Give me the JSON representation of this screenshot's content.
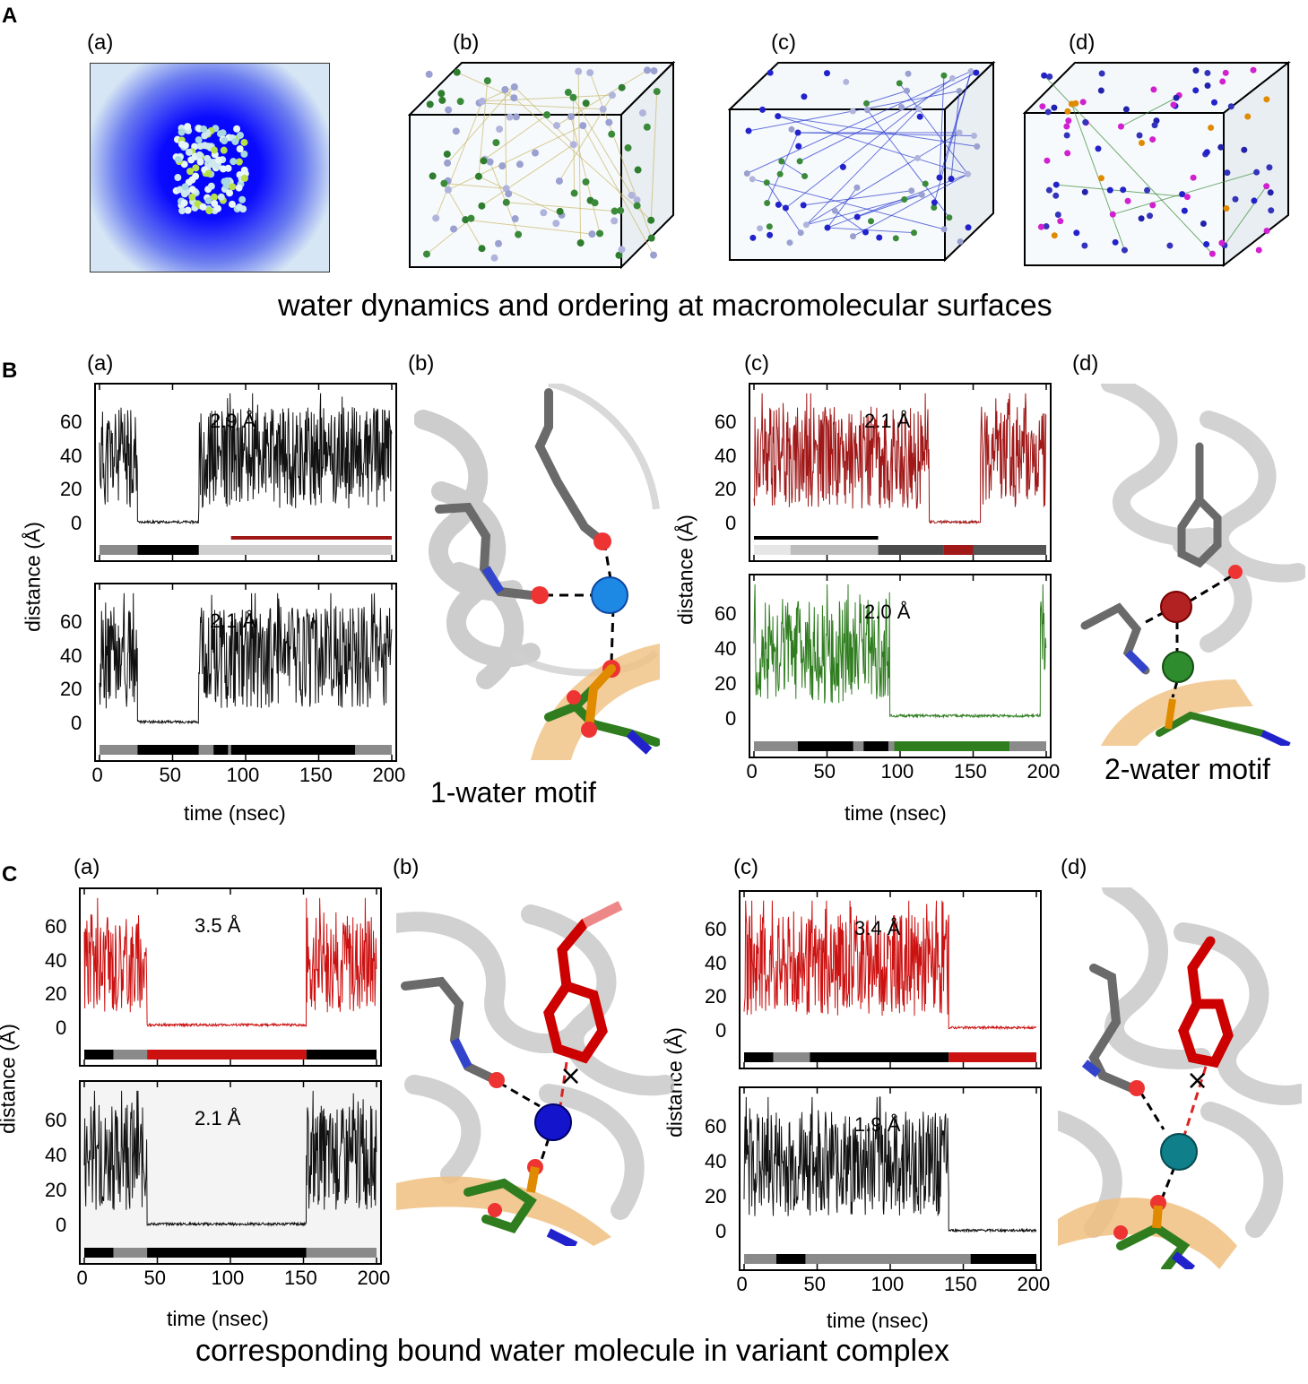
{
  "section_a": {
    "letter": "A",
    "panels": [
      "(a)",
      "(b)",
      "(c)",
      "(d)"
    ],
    "caption": "water dynamics and ordering at macromolecular surfaces"
  },
  "section_b": {
    "letter": "B",
    "panels": [
      "(a)",
      "(b)",
      "(c)",
      "(d)"
    ],
    "motif_1": "1-water motif",
    "motif_2": "2-water motif",
    "ylabel": "distance (Å)",
    "xlabel": "time (nsec)"
  },
  "section_c": {
    "letter": "C",
    "panels": [
      "(a)",
      "(b)",
      "(c)",
      "(d)"
    ],
    "caption": "corresponding bound water molecule in variant complex",
    "ylabel": "distance (Å)",
    "xlabel": "time (nsec)"
  },
  "colors": {
    "black_trace": "#111111",
    "darkred_trace": "#a01818",
    "green_trace": "#2f7d1f",
    "red_trace": "#cc1111",
    "bar_gray": "#8a8a8a",
    "bar_black": "#000000"
  },
  "chart_data": [
    {
      "id": "B-a-top",
      "type": "line",
      "distance_label": "2.9 Å",
      "xlim": [
        0,
        200
      ],
      "ylim": [
        -10,
        80
      ],
      "yticks": [
        "0",
        "20",
        "40",
        "60"
      ],
      "xticks": [],
      "xlabel": "",
      "ylabel": "distance (Å)",
      "color": "#111111",
      "segments": [
        [
          0,
          26,
          40
        ],
        [
          26,
          68,
          2
        ],
        [
          68,
          200,
          40
        ]
      ],
      "bar": [
        [
          0,
          26,
          "#8a8a8a"
        ],
        [
          26,
          68,
          "#000000"
        ],
        [
          68,
          200,
          "#cfcfcf"
        ]
      ],
      "highlight": [
        90,
        200,
        "#a01818"
      ]
    },
    {
      "id": "B-a-bottom",
      "type": "line",
      "distance_label": "2.1 Å",
      "xlim": [
        0,
        200
      ],
      "ylim": [
        -10,
        80
      ],
      "yticks": [
        "0",
        "20",
        "40",
        "60"
      ],
      "xticks": [
        "0",
        "50",
        "100",
        "150",
        "200"
      ],
      "xlabel": "time (nsec)",
      "ylabel": "",
      "color": "#111111",
      "segments": [
        [
          0,
          26,
          40
        ],
        [
          26,
          68,
          2
        ],
        [
          68,
          200,
          40
        ]
      ],
      "bar": [
        [
          0,
          26,
          "#8a8a8a"
        ],
        [
          26,
          68,
          "#000000"
        ],
        [
          68,
          78,
          "#8a8a8a"
        ],
        [
          78,
          88,
          "#000000"
        ],
        [
          88,
          90,
          "#8a8a8a"
        ],
        [
          90,
          175,
          "#000000"
        ],
        [
          175,
          200,
          "#8a8a8a"
        ]
      ]
    },
    {
      "id": "B-c-top",
      "type": "line",
      "distance_label": "2.1 Å",
      "xlim": [
        0,
        200
      ],
      "ylim": [
        -10,
        80
      ],
      "yticks": [
        "0",
        "20",
        "40",
        "60"
      ],
      "xticks": [],
      "xlabel": "",
      "ylabel": "distance (Å)",
      "color": "#a01818",
      "segments": [
        [
          0,
          120,
          40
        ],
        [
          120,
          155,
          2
        ],
        [
          155,
          200,
          40
        ]
      ],
      "bar": [
        [
          0,
          25,
          "#e6e6e6"
        ],
        [
          25,
          85,
          "#bdbdbd"
        ],
        [
          85,
          130,
          "#4a4a4a"
        ],
        [
          130,
          150,
          "#a01818"
        ],
        [
          150,
          200,
          "#555555"
        ]
      ],
      "highlight": [
        0,
        85,
        "#000000"
      ]
    },
    {
      "id": "B-c-bottom",
      "type": "line",
      "distance_label": "2.0 Å",
      "xlim": [
        0,
        200
      ],
      "ylim": [
        -10,
        80
      ],
      "yticks": [
        "0",
        "20",
        "40",
        "60"
      ],
      "xticks": [
        "0",
        "50",
        "100",
        "150",
        "200"
      ],
      "xlabel": "time (nsec)",
      "ylabel": "",
      "color": "#2f7d1f",
      "segments": [
        [
          0,
          93,
          40
        ],
        [
          93,
          196,
          3
        ],
        [
          196,
          200,
          40
        ]
      ],
      "bar": [
        [
          0,
          30,
          "#8a8a8a"
        ],
        [
          30,
          68,
          "#000000"
        ],
        [
          68,
          75,
          "#8a8a8a"
        ],
        [
          75,
          92,
          "#000000"
        ],
        [
          92,
          96,
          "#8a8a8a"
        ],
        [
          96,
          175,
          "#2f7d1f"
        ],
        [
          175,
          200,
          "#8a8a8a"
        ]
      ]
    },
    {
      "id": "C-a-top",
      "type": "line",
      "distance_label": "3.5 Å",
      "xlim": [
        0,
        200
      ],
      "ylim": [
        -10,
        80
      ],
      "yticks": [
        "0",
        "20",
        "40",
        "60"
      ],
      "xticks": [],
      "xlabel": "",
      "ylabel": "distance (Å)",
      "color": "#cc1111",
      "segments": [
        [
          0,
          43,
          40
        ],
        [
          43,
          152,
          3
        ],
        [
          152,
          200,
          40
        ]
      ],
      "bar": [
        [
          0,
          20,
          "#000000"
        ],
        [
          20,
          43,
          "#8a8a8a"
        ],
        [
          43,
          152,
          "#cc1111"
        ],
        [
          152,
          200,
          "#000000"
        ]
      ]
    },
    {
      "id": "C-a-bottom",
      "type": "line",
      "distance_label": "2.1 Å",
      "xlim": [
        0,
        200
      ],
      "ylim": [
        -10,
        80
      ],
      "yticks": [
        "0",
        "20",
        "40",
        "60"
      ],
      "xticks": [
        "0",
        "50",
        "100",
        "150",
        "200"
      ],
      "xlabel": "time (nsec)",
      "ylabel": "",
      "color": "#111111",
      "segments": [
        [
          0,
          43,
          40
        ],
        [
          43,
          152,
          2
        ],
        [
          152,
          200,
          40
        ]
      ],
      "bar": [
        [
          0,
          20,
          "#000000"
        ],
        [
          20,
          43,
          "#8a8a8a"
        ],
        [
          43,
          152,
          "#000000"
        ],
        [
          152,
          200,
          "#8a8a8a"
        ]
      ]
    },
    {
      "id": "C-c-top",
      "type": "line",
      "distance_label": "3.4 Å",
      "xlim": [
        0,
        200
      ],
      "ylim": [
        -10,
        80
      ],
      "yticks": [
        "0",
        "20",
        "40",
        "60"
      ],
      "xticks": [],
      "xlabel": "",
      "ylabel": "distance (Å)",
      "color": "#cc1111",
      "segments": [
        [
          0,
          140,
          40
        ],
        [
          140,
          200,
          3
        ]
      ],
      "bar": [
        [
          0,
          20,
          "#000000"
        ],
        [
          20,
          45,
          "#8a8a8a"
        ],
        [
          45,
          140,
          "#000000"
        ],
        [
          140,
          200,
          "#cc1111"
        ]
      ]
    },
    {
      "id": "C-c-bottom",
      "type": "line",
      "distance_label": "1.9 Å",
      "xlim": [
        0,
        200
      ],
      "ylim": [
        -10,
        80
      ],
      "yticks": [
        "0",
        "20",
        "40",
        "60"
      ],
      "xticks": [
        "0",
        "50",
        "100",
        "150",
        "200"
      ],
      "xlabel": "time (nsec)",
      "ylabel": "",
      "color": "#111111",
      "segments": [
        [
          0,
          140,
          40
        ],
        [
          140,
          200,
          2
        ]
      ],
      "bar": [
        [
          0,
          22,
          "#8a8a8a"
        ],
        [
          22,
          42,
          "#000000"
        ],
        [
          42,
          155,
          "#8a8a8a"
        ],
        [
          155,
          200,
          "#000000"
        ]
      ]
    }
  ]
}
